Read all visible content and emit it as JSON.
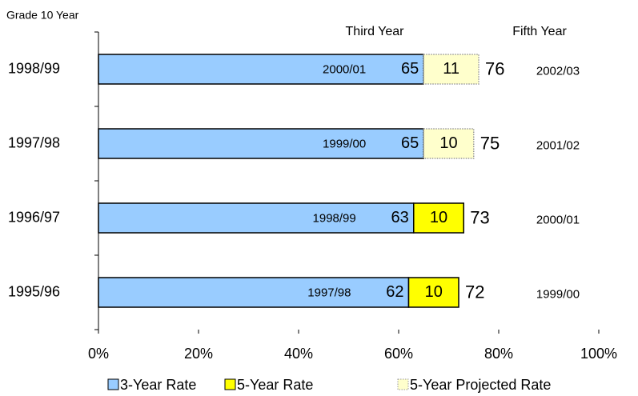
{
  "chart_data": {
    "type": "stacked_barh",
    "annotations": {
      "y_title": "Grade 10 Year",
      "third": "Third Year",
      "fifth": "Fifth Year"
    },
    "categories": [
      "1998/99",
      "1997/98",
      "1996/97",
      "1995/96"
    ],
    "series": [
      {
        "name": "3-Year Rate",
        "color": "#99ccff",
        "border": "#000000",
        "border_style": "solid",
        "values": [
          65,
          65,
          63,
          62
        ]
      },
      {
        "name": "5-Year Rate",
        "color": "#ffff00",
        "border": "#000000",
        "border_style": "solid",
        "values": [
          null,
          null,
          10,
          10
        ]
      },
      {
        "name": "5-Year Projected Rate",
        "color": "#ffffcc",
        "border": "#999999",
        "border_style": "dotted",
        "values": [
          11,
          10,
          null,
          null
        ]
      }
    ],
    "totals": [
      76,
      75,
      73,
      72
    ],
    "third_year_labels": [
      "2000/01",
      "1999/00",
      "1998/99",
      "1997/98"
    ],
    "fifth_year_labels": [
      "2002/03",
      "2001/02",
      "2000/01",
      "1999/00"
    ],
    "xlim": [
      0,
      100
    ],
    "xticks": [
      {
        "value": 0,
        "label": "0%"
      },
      {
        "value": 20,
        "label": "20%"
      },
      {
        "value": 40,
        "label": "40%"
      },
      {
        "value": 60,
        "label": "60%"
      },
      {
        "value": 80,
        "label": "80%"
      },
      {
        "value": 100,
        "label": "100%"
      }
    ]
  }
}
